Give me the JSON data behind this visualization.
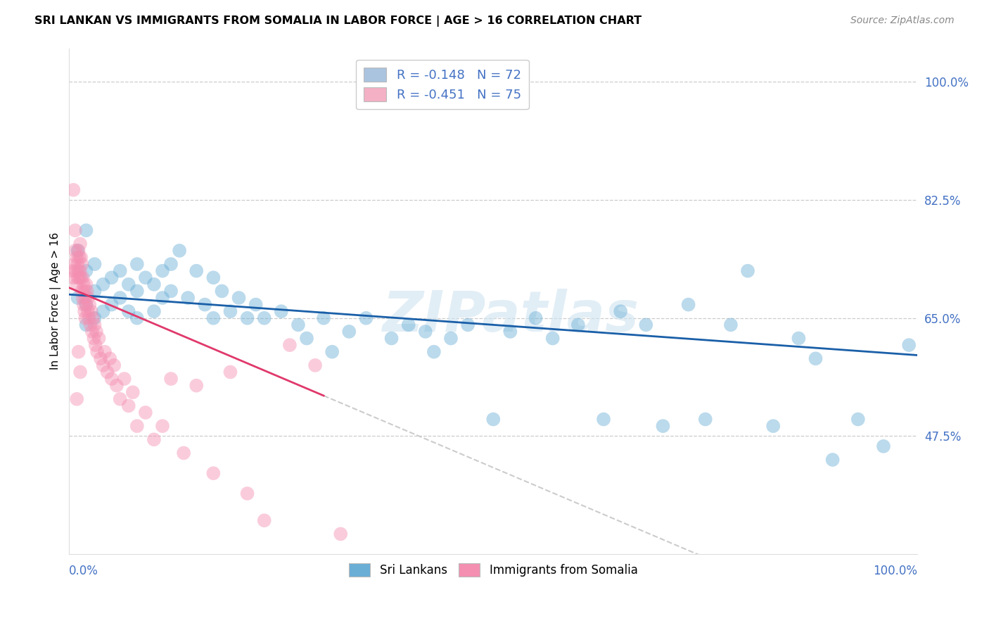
{
  "title": "SRI LANKAN VS IMMIGRANTS FROM SOMALIA IN LABOR FORCE | AGE > 16 CORRELATION CHART",
  "source": "Source: ZipAtlas.com",
  "ylabel": "In Labor Force | Age > 16",
  "yticks": [
    0.475,
    0.65,
    0.825,
    1.0
  ],
  "ytick_labels": [
    "47.5%",
    "65.0%",
    "82.5%",
    "100.0%"
  ],
  "xlim": [
    0.0,
    1.0
  ],
  "ylim": [
    0.3,
    1.05
  ],
  "watermark": "ZIPatlas",
  "legend_entries": [
    {
      "label": "R = -0.148   N = 72",
      "color": "#aac4e0"
    },
    {
      "label": "R = -0.451   N = 75",
      "color": "#f4b0c5"
    }
  ],
  "legend_label_blue": "Sri Lankans",
  "legend_label_pink": "Immigrants from Somalia",
  "sri_lankan_color": "#6aaed6",
  "somalia_color": "#f48fb1",
  "trendline_blue_color": "#1a5fa8",
  "trendline_pink_color": "#e0396b",
  "trendline_dashed_color": "#cccccc",
  "blue_R": -0.148,
  "blue_N": 72,
  "pink_R": -0.451,
  "pink_N": 75,
  "blue_trendline_y0": 0.685,
  "blue_trendline_y1": 0.595,
  "pink_trendline_y0": 0.695,
  "pink_trendline_x_end": 0.3,
  "pink_trendline_y_end": 0.535,
  "blue_scatter_x": [
    0.01,
    0.01,
    0.02,
    0.02,
    0.02,
    0.02,
    0.03,
    0.03,
    0.03,
    0.04,
    0.04,
    0.05,
    0.05,
    0.06,
    0.06,
    0.07,
    0.07,
    0.08,
    0.08,
    0.08,
    0.09,
    0.1,
    0.1,
    0.11,
    0.11,
    0.12,
    0.12,
    0.13,
    0.14,
    0.15,
    0.16,
    0.17,
    0.17,
    0.18,
    0.19,
    0.2,
    0.21,
    0.22,
    0.23,
    0.25,
    0.27,
    0.28,
    0.3,
    0.31,
    0.33,
    0.35,
    0.38,
    0.4,
    0.42,
    0.43,
    0.45,
    0.47,
    0.5,
    0.52,
    0.55,
    0.57,
    0.6,
    0.63,
    0.65,
    0.68,
    0.7,
    0.73,
    0.75,
    0.78,
    0.8,
    0.83,
    0.86,
    0.88,
    0.9,
    0.93,
    0.96,
    0.99
  ],
  "blue_scatter_y": [
    0.75,
    0.68,
    0.78,
    0.72,
    0.67,
    0.64,
    0.73,
    0.69,
    0.65,
    0.7,
    0.66,
    0.71,
    0.67,
    0.72,
    0.68,
    0.7,
    0.66,
    0.73,
    0.69,
    0.65,
    0.71,
    0.7,
    0.66,
    0.72,
    0.68,
    0.73,
    0.69,
    0.75,
    0.68,
    0.72,
    0.67,
    0.71,
    0.65,
    0.69,
    0.66,
    0.68,
    0.65,
    0.67,
    0.65,
    0.66,
    0.64,
    0.62,
    0.65,
    0.6,
    0.63,
    0.65,
    0.62,
    0.64,
    0.63,
    0.6,
    0.62,
    0.64,
    0.5,
    0.63,
    0.65,
    0.62,
    0.64,
    0.5,
    0.66,
    0.64,
    0.49,
    0.67,
    0.5,
    0.64,
    0.72,
    0.49,
    0.62,
    0.59,
    0.44,
    0.5,
    0.46,
    0.61
  ],
  "pink_scatter_x": [
    0.004,
    0.005,
    0.006,
    0.007,
    0.008,
    0.009,
    0.009,
    0.01,
    0.01,
    0.011,
    0.011,
    0.012,
    0.012,
    0.013,
    0.013,
    0.014,
    0.014,
    0.015,
    0.015,
    0.016,
    0.016,
    0.017,
    0.017,
    0.018,
    0.018,
    0.019,
    0.019,
    0.02,
    0.02,
    0.021,
    0.022,
    0.022,
    0.023,
    0.024,
    0.025,
    0.026,
    0.027,
    0.028,
    0.029,
    0.03,
    0.031,
    0.032,
    0.033,
    0.035,
    0.037,
    0.04,
    0.042,
    0.045,
    0.048,
    0.05,
    0.053,
    0.056,
    0.06,
    0.065,
    0.07,
    0.075,
    0.08,
    0.09,
    0.1,
    0.11,
    0.12,
    0.135,
    0.15,
    0.17,
    0.19,
    0.21,
    0.23,
    0.26,
    0.29,
    0.32,
    0.005,
    0.007,
    0.009,
    0.011,
    0.013
  ],
  "pink_scatter_y": [
    0.72,
    0.71,
    0.73,
    0.75,
    0.72,
    0.74,
    0.7,
    0.73,
    0.71,
    0.75,
    0.72,
    0.74,
    0.71,
    0.76,
    0.72,
    0.74,
    0.71,
    0.73,
    0.69,
    0.71,
    0.68,
    0.7,
    0.67,
    0.69,
    0.66,
    0.68,
    0.65,
    0.7,
    0.67,
    0.69,
    0.66,
    0.68,
    0.65,
    0.67,
    0.64,
    0.66,
    0.63,
    0.65,
    0.62,
    0.64,
    0.61,
    0.63,
    0.6,
    0.62,
    0.59,
    0.58,
    0.6,
    0.57,
    0.59,
    0.56,
    0.58,
    0.55,
    0.53,
    0.56,
    0.52,
    0.54,
    0.49,
    0.51,
    0.47,
    0.49,
    0.56,
    0.45,
    0.55,
    0.42,
    0.57,
    0.39,
    0.35,
    0.61,
    0.58,
    0.33,
    0.84,
    0.78,
    0.53,
    0.6,
    0.57
  ]
}
